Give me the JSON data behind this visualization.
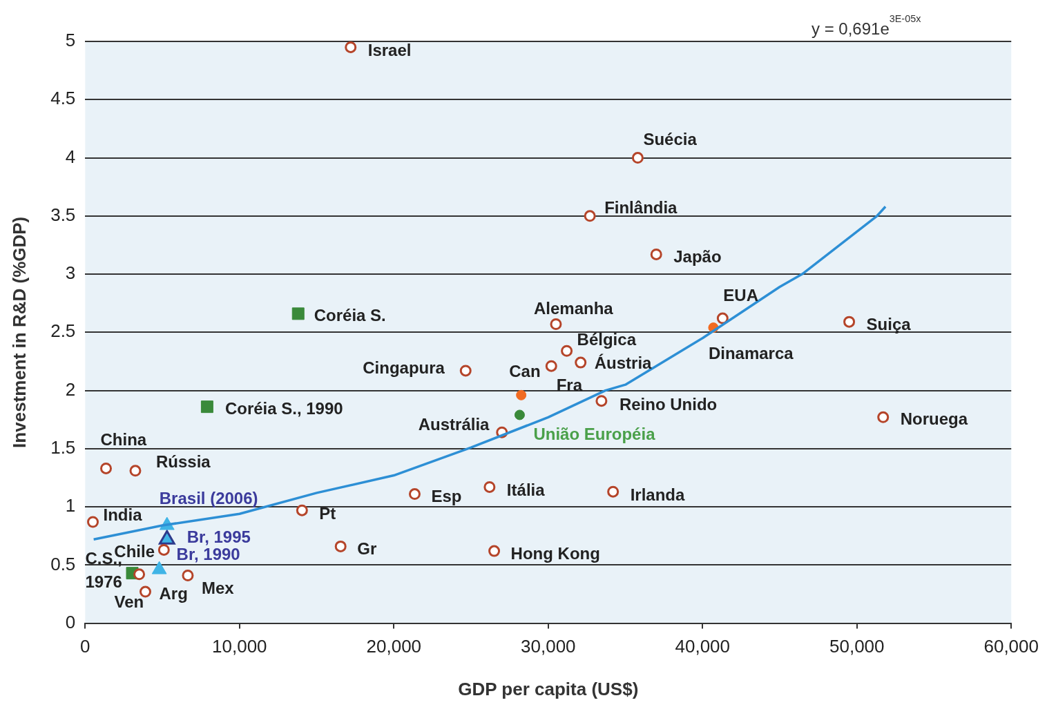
{
  "chart_data": {
    "type": "scatter",
    "xlabel": "GDP per capita (US$)",
    "ylabel": "Investment in R&D (%GDP)",
    "xlim": [
      0,
      60000
    ],
    "ylim": [
      0,
      5
    ],
    "xticks": [
      0,
      {
        "value": 10000,
        "label": "10,000"
      },
      {
        "value": 20000,
        "label": "20,000"
      },
      {
        "value": 30000,
        "label": "30,000"
      },
      {
        "value": 40000,
        "label": "40,000"
      },
      {
        "value": 50000,
        "label": "50,000"
      },
      {
        "value": 60000,
        "label": "60,000"
      }
    ],
    "yticks": [
      0,
      0.5,
      1,
      1.5,
      2,
      2.5,
      3,
      3.5,
      4,
      4.5,
      5
    ],
    "grid": "y",
    "legend": false,
    "series": [
      {
        "marker": "circle",
        "color": "#b5452a",
        "x": [
          17200,
          35800,
          32700,
          37000,
          41300,
          49500,
          30500,
          31200,
          32100,
          30200,
          24650,
          27000,
          33450,
          51700,
          26200,
          21350,
          34200,
          26500,
          14050,
          16550,
          1350,
          3250,
          500,
          5100,
          3500,
          3900,
          6650
        ],
        "values": [
          4.95,
          4.0,
          3.5,
          3.17,
          2.62,
          2.59,
          2.57,
          2.34,
          2.24,
          2.21,
          2.17,
          1.64,
          1.91,
          1.77,
          1.17,
          1.11,
          1.13,
          0.62,
          0.97,
          0.66,
          1.33,
          1.31,
          0.87,
          0.63,
          0.42,
          0.27,
          0.41
        ]
      },
      {
        "marker": "circle",
        "color": "#f26b21",
        "x": [
          40700,
          28250
        ],
        "values": [
          2.54,
          1.96
        ]
      },
      {
        "marker": "circle",
        "color": "#3a8a3a",
        "x": [
          28150
        ],
        "values": [
          1.79
        ]
      },
      {
        "marker": "square",
        "color": "#3a8a3a",
        "x": [
          13800,
          7900,
          3050
        ],
        "values": [
          2.66,
          1.86,
          0.43
        ]
      },
      {
        "marker": "triangle",
        "color": "#3fb4e6",
        "x": [
          5300,
          4800
        ],
        "values": [
          0.84,
          0.46
        ]
      },
      {
        "marker": "triangle",
        "color": "#2d3a8c",
        "x": [
          5300
        ],
        "values": [
          0.72
        ]
      },
      {
        "type": "line",
        "marker": "none",
        "color": "#2d8fd5",
        "x": [
          550,
          5000,
          10000,
          15000,
          20000,
          25000,
          30000,
          33700,
          35000,
          40000,
          45000,
          46450,
          51300,
          51850
        ],
        "values": [
          0.72,
          0.84,
          0.94,
          1.12,
          1.27,
          1.51,
          1.77,
          2.0,
          2.05,
          2.45,
          2.89,
          3.0,
          3.5,
          3.58
        ]
      }
    ],
    "annotations": [
      {
        "text": "Israel",
        "x": 17200,
        "y": 4.95
      },
      {
        "text": "Suécia",
        "x": 35800,
        "y": 4.0
      },
      {
        "text": "Finlândia",
        "x": 32700,
        "y": 3.5
      },
      {
        "text": "Japão",
        "x": 37000,
        "y": 3.17
      },
      {
        "text": "EUA",
        "x": 41300,
        "y": 2.62
      },
      {
        "text": "Dinamarca",
        "x": 40700,
        "y": 2.54
      },
      {
        "text": "Suiça",
        "x": 49500,
        "y": 2.59
      },
      {
        "text": "Alemanha",
        "x": 30500,
        "y": 2.57
      },
      {
        "text": "Bélgica",
        "x": 31200,
        "y": 2.34
      },
      {
        "text": "Áustria",
        "x": 32100,
        "y": 2.24
      },
      {
        "text": "Can",
        "x": 30200,
        "y": 2.21
      },
      {
        "text": "Cingapura",
        "x": 24650,
        "y": 2.17
      },
      {
        "text": "Fra",
        "x": 28250,
        "y": 1.96
      },
      {
        "text": "União Européia",
        "x": 28150,
        "y": 1.79
      },
      {
        "text": "Austrália",
        "x": 27000,
        "y": 1.64
      },
      {
        "text": "Reino Unido",
        "x": 33450,
        "y": 1.91
      },
      {
        "text": "Noruega",
        "x": 51700,
        "y": 1.77
      },
      {
        "text": "Itália",
        "x": 26200,
        "y": 1.17
      },
      {
        "text": "Esp",
        "x": 21350,
        "y": 1.11
      },
      {
        "text": "Irlanda",
        "x": 34200,
        "y": 1.13
      },
      {
        "text": "Hong Kong",
        "x": 26500,
        "y": 0.62
      },
      {
        "text": "Pt",
        "x": 14050,
        "y": 0.97
      },
      {
        "text": "Gr",
        "x": 16550,
        "y": 0.66
      },
      {
        "text": "China",
        "x": 1350,
        "y": 1.33
      },
      {
        "text": "Rússia",
        "x": 3250,
        "y": 1.31
      },
      {
        "text": "India",
        "x": 500,
        "y": 0.87
      },
      {
        "text": "Chile",
        "x": 5100,
        "y": 0.63
      },
      {
        "text": "Ven",
        "x": 3500,
        "y": 0.42
      },
      {
        "text": "Arg",
        "x": 3900,
        "y": 0.27
      },
      {
        "text": "Mex",
        "x": 6650,
        "y": 0.41
      },
      {
        "text": "Coréia S.",
        "x": 13800,
        "y": 2.66
      },
      {
        "text": "Coréia S., 1990",
        "x": 7900,
        "y": 1.86
      },
      {
        "text": "C.S., 1976",
        "x": 3050,
        "y": 0.43
      },
      {
        "text": "Brasil (2006)",
        "x": 5300,
        "y": 0.84
      },
      {
        "text": "Br, 1995",
        "x": 5300,
        "y": 0.72
      },
      {
        "text": "Br, 1990",
        "x": 4800,
        "y": 0.46
      },
      "y = 0,691e$^{3E-05x}$"
    ]
  }
}
